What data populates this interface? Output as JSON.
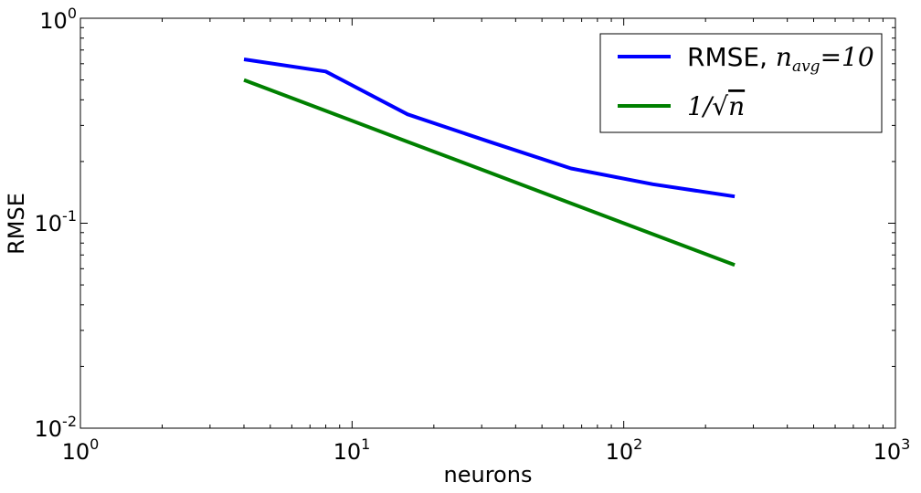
{
  "chart_data": {
    "type": "line",
    "xscale": "log",
    "yscale": "log",
    "xlim": [
      1,
      1000
    ],
    "ylim": [
      0.01,
      1
    ],
    "xlabel": "neurons",
    "ylabel": "RMSE",
    "x_ticks": [
      {
        "base": "10",
        "exp": "0",
        "value": 1
      },
      {
        "base": "10",
        "exp": "1",
        "value": 10
      },
      {
        "base": "10",
        "exp": "2",
        "value": 100
      },
      {
        "base": "10",
        "exp": "3",
        "value": 1000
      }
    ],
    "y_ticks": [
      {
        "base": "10",
        "exp": "-2",
        "value": 0.01
      },
      {
        "base": "10",
        "exp": "-1",
        "value": 0.1
      },
      {
        "base": "10",
        "exp": "0",
        "value": 1
      }
    ],
    "grid": false,
    "legend_position": "top-right",
    "series": [
      {
        "legend_prefix": "RMSE, ",
        "legend_math_base": "n",
        "legend_math_sub": "avg",
        "legend_math_rest": "=10",
        "color": "#0000ff",
        "x": [
          4,
          8,
          16,
          32,
          64,
          128,
          256
        ],
        "y": [
          0.63,
          0.55,
          0.34,
          0.25,
          0.185,
          0.155,
          0.135
        ]
      },
      {
        "legend_prefix": "1/",
        "legend_math_sqrt": "n",
        "color": "#008000",
        "x": [
          4,
          8,
          16,
          32,
          64,
          128,
          256
        ],
        "y": [
          0.5,
          0.3536,
          0.25,
          0.1768,
          0.125,
          0.0884,
          0.0625
        ]
      }
    ]
  }
}
